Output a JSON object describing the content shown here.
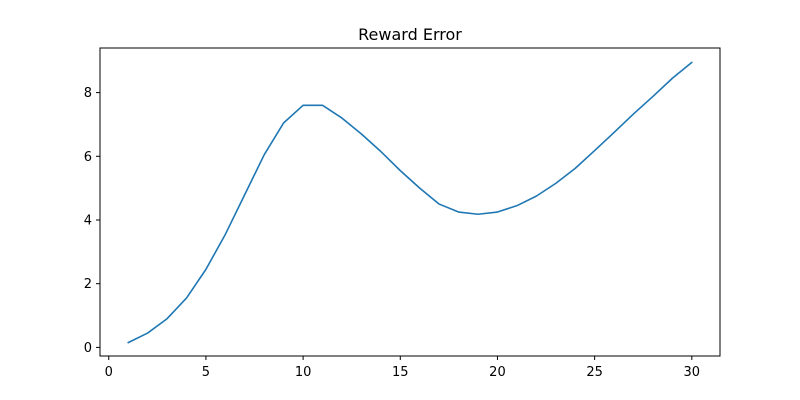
{
  "chart_data": {
    "type": "line",
    "title": "Reward Error",
    "xlabel": "",
    "ylabel": "",
    "xlim": [
      -0.45,
      31.45
    ],
    "ylim": [
      -0.27,
      9.4
    ],
    "xticks": [
      0,
      5,
      10,
      15,
      20,
      25,
      30
    ],
    "yticks": [
      0,
      2,
      4,
      6,
      8
    ],
    "grid": false,
    "legend": "none",
    "colors": {
      "line": "#1f77b4",
      "axes": "#000000"
    },
    "series": [
      {
        "x": [
          1,
          2,
          3,
          4,
          5,
          6,
          7,
          8,
          9,
          10,
          11,
          12,
          13,
          14,
          15,
          16,
          17,
          18,
          19,
          20,
          21,
          22,
          23,
          24,
          25,
          26,
          27,
          28,
          29,
          30
        ],
        "y": [
          0.15,
          0.45,
          0.9,
          1.55,
          2.45,
          3.55,
          4.8,
          6.05,
          7.05,
          7.6,
          7.6,
          7.2,
          6.7,
          6.15,
          5.55,
          5.0,
          4.5,
          4.25,
          4.18,
          4.25,
          4.45,
          4.75,
          5.15,
          5.62,
          6.18,
          6.75,
          7.33,
          7.88,
          8.45,
          8.95
        ]
      }
    ]
  }
}
